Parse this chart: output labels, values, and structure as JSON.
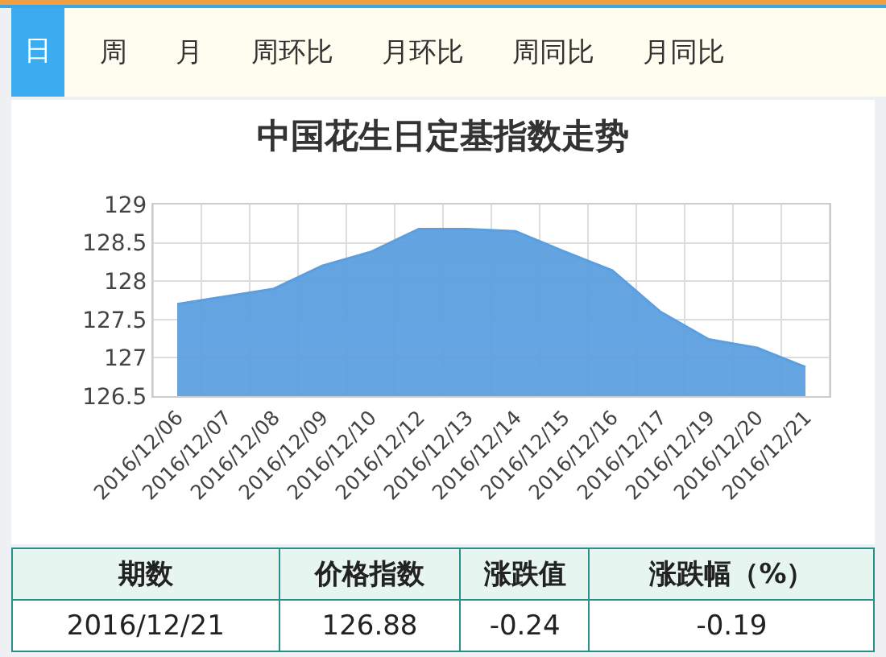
{
  "chart_data": {
    "type": "area",
    "title": "中国花生日定基指数走势",
    "categories": [
      "2016/12/06",
      "2016/12/07",
      "2016/12/08",
      "2016/12/09",
      "2016/12/10",
      "2016/12/12",
      "2016/12/13",
      "2016/12/14",
      "2016/12/15",
      "2016/12/16",
      "2016/12/17",
      "2016/12/19",
      "2016/12/20",
      "2016/12/21"
    ],
    "series": [
      {
        "color": "#5b9fe0",
        "values": [
          127.7,
          127.8,
          127.9,
          128.2,
          128.38,
          128.68,
          128.68,
          128.65,
          128.39,
          128.14,
          127.6,
          127.24,
          127.13,
          126.88
        ]
      }
    ],
    "ylim": [
      126.5,
      129
    ],
    "yticks": [
      126.5,
      127,
      127.5,
      128,
      128.5,
      129
    ],
    "grid": true,
    "annotations": [
      "日",
      "周",
      "月",
      "周环比",
      "月环比",
      "周同比",
      "月同比",
      "期数",
      "价格指数",
      "涨跌值",
      "涨跌幅（%）",
      "2016/12/21",
      "126.88",
      "-0.24",
      "-0.19"
    ]
  }
}
